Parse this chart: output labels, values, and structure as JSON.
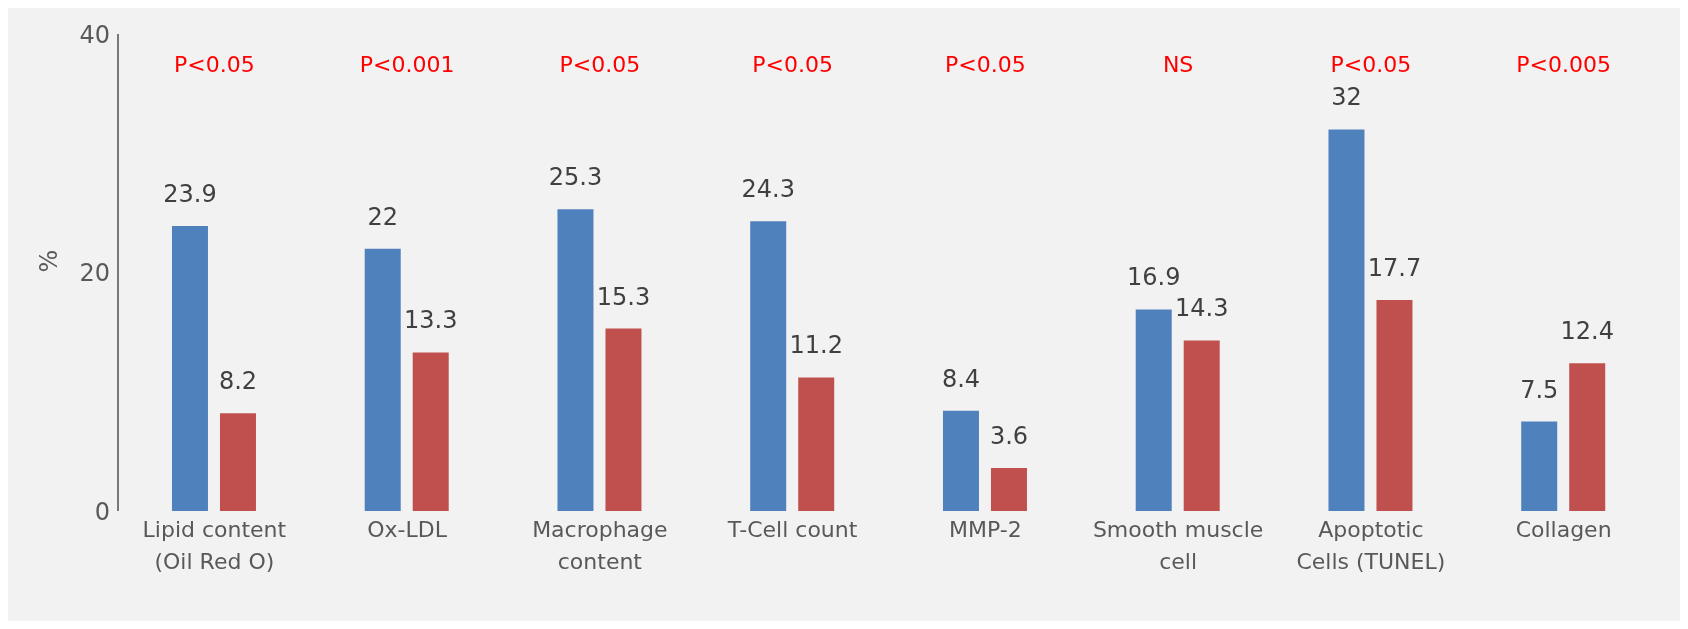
{
  "chart_data": {
    "type": "bar",
    "ylabel": "%",
    "categories": [
      "Lipid content (Oil Red O)",
      "Ox-LDL",
      "Macrophage content",
      "T-Cell count",
      "MMP-2",
      "Smooth muscle cell",
      "Apoptotic Cells (TUNEL)",
      "Collagen"
    ],
    "series": [
      {
        "color": "#4f81bd",
        "values": [
          23.9,
          22,
          25.3,
          24.3,
          8.4,
          16.9,
          32,
          7.5
        ]
      },
      {
        "color": "#c0504d",
        "values": [
          8.2,
          13.3,
          15.3,
          11.2,
          3.6,
          14.3,
          17.7,
          12.4
        ]
      }
    ],
    "ylim": [
      0,
      40
    ],
    "yticks": [
      0,
      20,
      40
    ],
    "data_labels": true,
    "grid": false,
    "legend": false,
    "annotations": [
      "P<0.05",
      "P<0.001",
      "P<0.05",
      "P<0.05",
      "P<0.05",
      "NS",
      "P<0.05",
      "P<0.005"
    ]
  }
}
